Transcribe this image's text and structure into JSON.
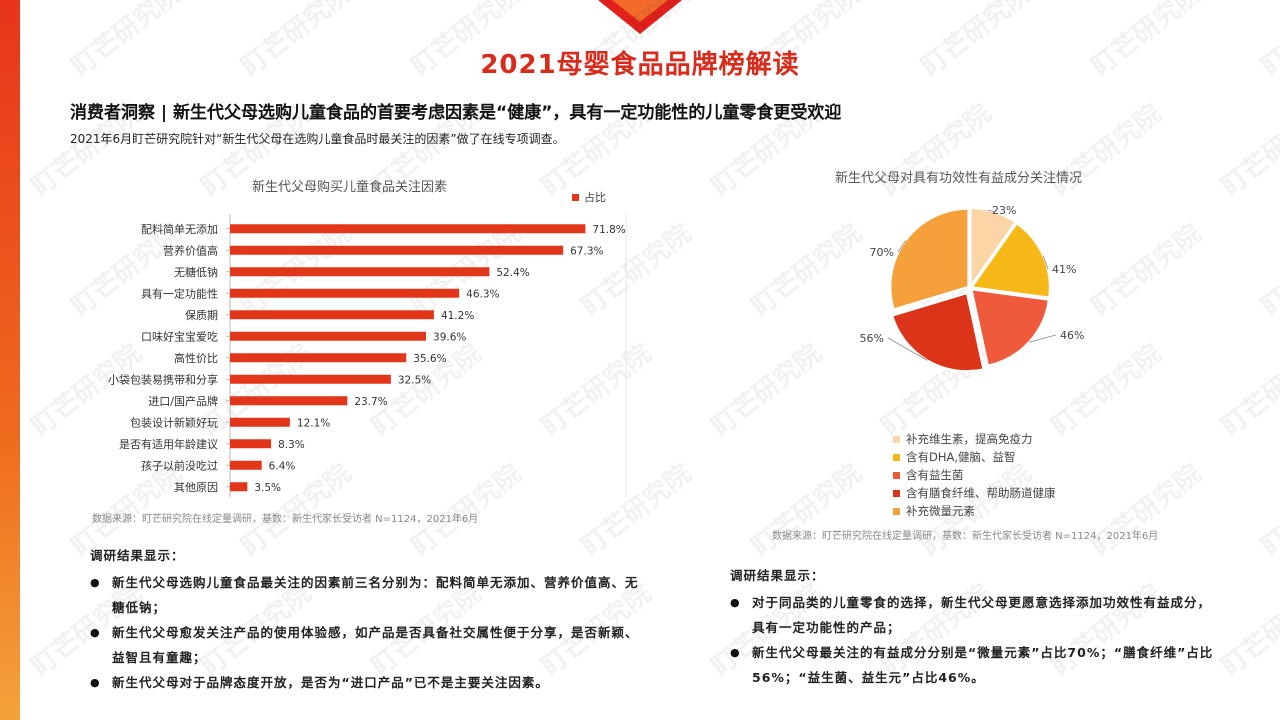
{
  "header": {
    "title": "2021母婴食品品牌榜解读",
    "subtitle": "消费者洞察 | 新生代父母选购儿童食品的首要考虑因素是“健康”，具有一定功能性的儿童零食更受欢迎",
    "intro": "2021年6月盯芒研究院针对“新生代父母在选购儿童食品时最关注的因素”做了在线专项调查。"
  },
  "watermark": "盯芒研究院",
  "colors": {
    "accent": "#d92b1c",
    "bar": "#e2361b",
    "pie": [
      "#fbd5a5",
      "#f6b817",
      "#f05a3c",
      "#dc3418",
      "#f5a03a"
    ]
  },
  "chart_data": [
    {
      "type": "bar",
      "orientation": "horizontal",
      "title": "新生代父母购买儿童食品关注因素",
      "categories": [
        "配料简单无添加",
        "营养价值高",
        "无糖低钠",
        "具有一定功能性",
        "保质期",
        "口味好宝宝爱吃",
        "高性价比",
        "小袋包装易携带和分享",
        "进口/国产品牌",
        "包装设计新颖好玩",
        "是否有适用年龄建议",
        "孩子以前没吃过",
        "其他原因"
      ],
      "series": [
        {
          "name": "占比",
          "values": [
            71.8,
            67.3,
            52.4,
            46.3,
            41.2,
            39.6,
            35.6,
            32.5,
            23.7,
            12.1,
            8.3,
            6.4,
            3.5
          ]
        }
      ],
      "value_labels": [
        "71.8%",
        "67.3%",
        "52.4%",
        "46.3%",
        "41.2%",
        "39.6%",
        "35.6%",
        "32.5%",
        "23.7%",
        "12.1%",
        "8.3%",
        "6.4%",
        "3.5%"
      ],
      "xlim": [
        0,
        80
      ],
      "grid": true,
      "legend": "top-right",
      "source": "数据来源：盯芒研究院在线定量调研，基数：新生代家长受访者 N=1124，2021年6月"
    },
    {
      "type": "pie",
      "title": "新生代父母对具有功效性有益成分关注情况",
      "categories": [
        "补充维生素，提高免疫力",
        "含有DHA,健脑、益智",
        "含有益生菌",
        "含有膳食纤维、帮助肠道健康",
        "补充微量元素"
      ],
      "values": [
        23,
        41,
        46,
        56,
        70
      ],
      "value_labels": [
        "23%",
        "41%",
        "46%",
        "56%",
        "70%"
      ],
      "legend": "bottom",
      "source": "数据来源：盯芒研究院在线定量调研，基数：新生代家长受访者 N=1124，2021年6月"
    }
  ],
  "findings_left": {
    "heading": "调研结果显示：",
    "items": [
      "新生代父母选购儿童食品最关注的因素前三名分别为：配料简单无添加、营养价值高、无糖低钠；",
      "新生代父母愈发关注产品的使用体验感，如产品是否具备社交属性便于分享，是否新颖、益智且有童趣；",
      "新生代父母对于品牌态度开放，是否为“进口产品”已不是主要关注因素。"
    ]
  },
  "findings_right": {
    "heading": "调研结果显示：",
    "items": [
      "对于同品类的儿童零食的选择，新生代父母更愿意选择添加功效性有益成分，具有一定功能性的产品；",
      "新生代父母最关注的有益成分分别是“微量元素”占比70%；“膳食纤维”占比56%；“益生菌、益生元”占比46%。"
    ]
  }
}
